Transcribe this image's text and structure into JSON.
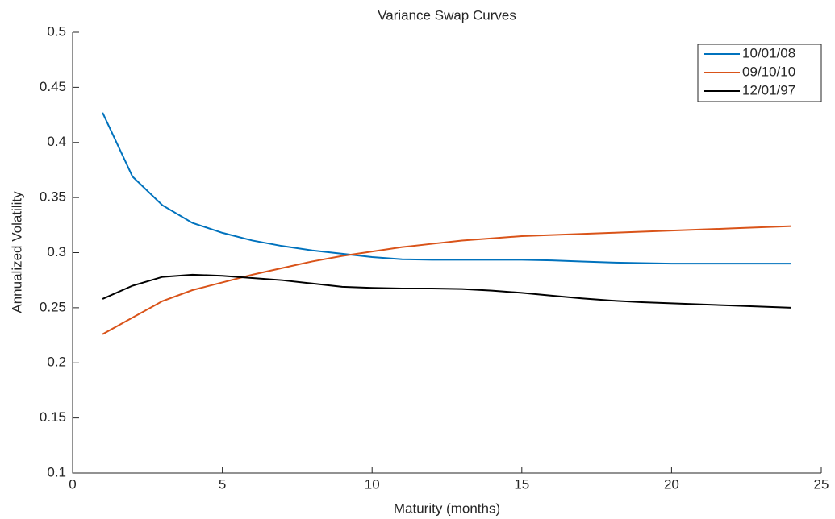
{
  "chart_data": {
    "type": "line",
    "title": "Variance Swap Curves",
    "x_label": "Maturity (months)",
    "y_label": "Annualized Volatility",
    "x": [
      1,
      2,
      3,
      4,
      5,
      6,
      7,
      8,
      9,
      10,
      11,
      12,
      13,
      14,
      15,
      16,
      17,
      18,
      19,
      20,
      21,
      22,
      23,
      24
    ],
    "series": [
      {
        "name": "10/01/08",
        "color": "#0072bd",
        "values": [
          0.427,
          0.369,
          0.343,
          0.327,
          0.318,
          0.311,
          0.306,
          0.302,
          0.299,
          0.296,
          0.294,
          0.2935,
          0.2935,
          0.2935,
          0.2935,
          0.293,
          0.292,
          0.291,
          0.2905,
          0.29,
          0.29,
          0.29,
          0.29,
          0.29
        ]
      },
      {
        "name": "09/10/10",
        "color": "#d95319",
        "values": [
          0.226,
          0.241,
          0.256,
          0.266,
          0.273,
          0.28,
          0.286,
          0.292,
          0.297,
          0.301,
          0.305,
          0.308,
          0.311,
          0.313,
          0.315,
          0.316,
          0.317,
          0.318,
          0.319,
          0.32,
          0.321,
          0.322,
          0.323,
          0.324
        ]
      },
      {
        "name": "12/01/97",
        "color": "#000000",
        "values": [
          0.258,
          0.27,
          0.278,
          0.28,
          0.279,
          0.277,
          0.275,
          0.272,
          0.269,
          0.268,
          0.2675,
          0.2675,
          0.267,
          0.2655,
          0.2635,
          0.261,
          0.2585,
          0.2565,
          0.255,
          0.254,
          0.253,
          0.252,
          0.251,
          0.25
        ]
      }
    ],
    "xlim": [
      0,
      25
    ],
    "xticks": [
      0,
      5,
      10,
      15,
      20,
      25
    ],
    "ylim": [
      0.1,
      0.5
    ],
    "yticks": [
      0.1,
      0.15,
      0.2,
      0.25,
      0.3,
      0.35,
      0.4,
      0.45,
      0.5
    ],
    "grid": false,
    "legend": "upper right"
  }
}
